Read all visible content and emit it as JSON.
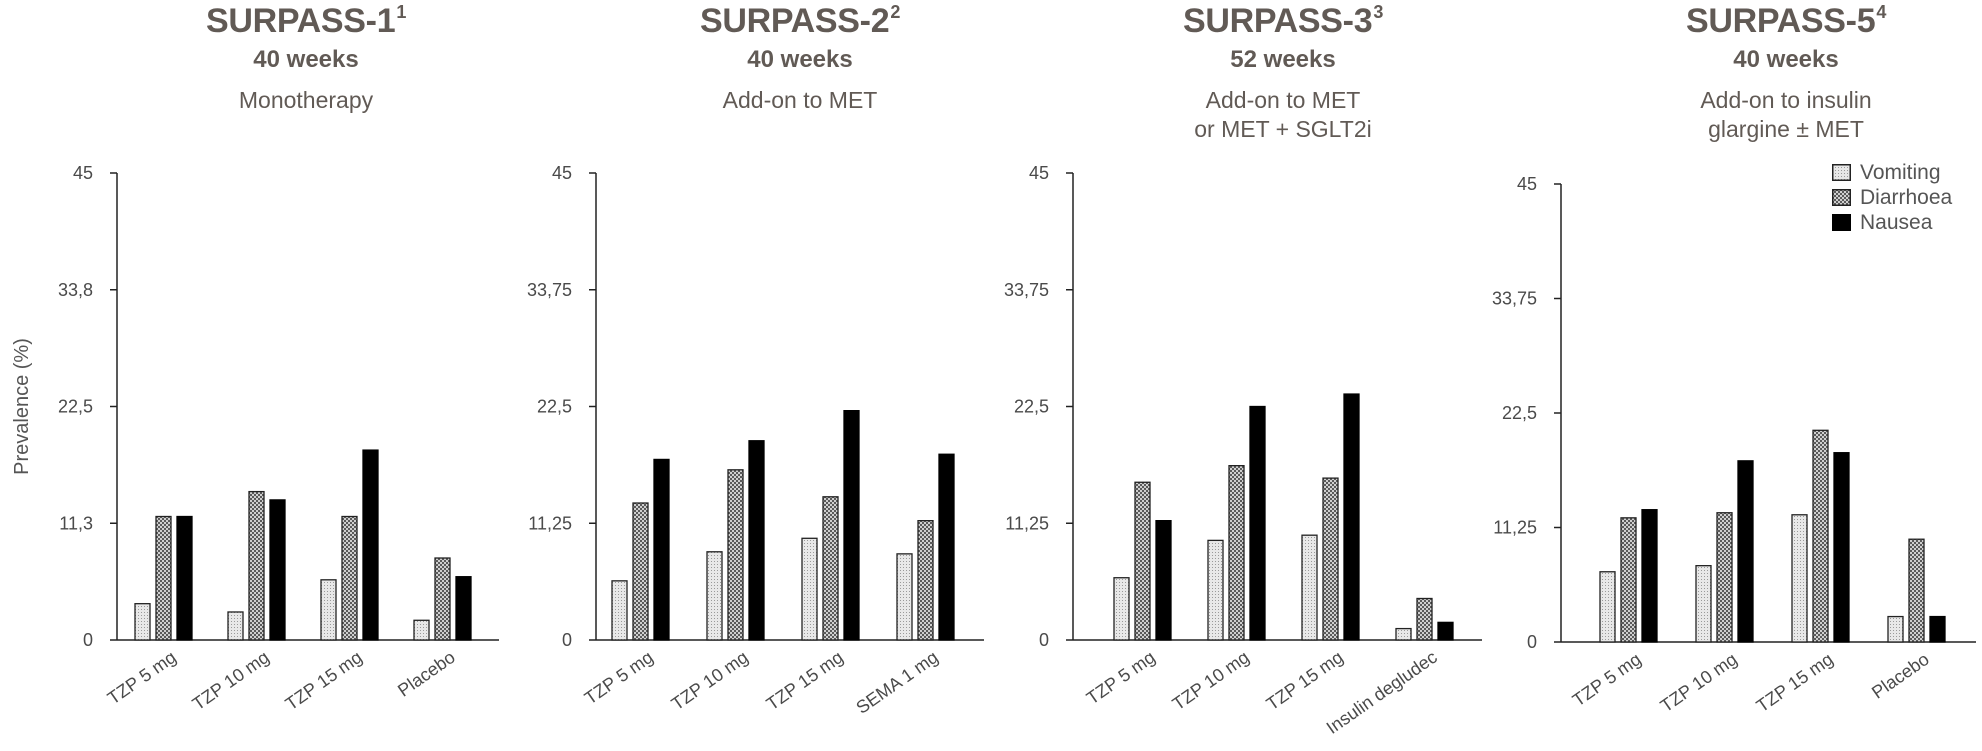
{
  "legend": {
    "items": [
      {
        "name": "Vomiting",
        "pattern": "dots-light"
      },
      {
        "name": "Diarrhoea",
        "pattern": "checker-dark"
      },
      {
        "name": "Nausea",
        "pattern": "solid-black"
      }
    ]
  },
  "chart_data": [
    {
      "type": "bar",
      "title": "SURPASS-1",
      "title_sup": "1",
      "subtitle": "40 weeks",
      "description": [
        "Monotherapy"
      ],
      "ylabel": "Prevalence (%)",
      "ylim": [
        0,
        45
      ],
      "yticks": [
        "0",
        "11,3",
        "22,5",
        "33,8",
        "45"
      ],
      "categories": [
        "TZP 5 mg",
        "TZP 10 mg",
        "TZP 15 mg",
        "Placebo"
      ],
      "series": [
        {
          "name": "Vomiting",
          "values": [
            3.5,
            2.7,
            5.8,
            1.9
          ]
        },
        {
          "name": "Diarrhoea",
          "values": [
            11.9,
            14.3,
            11.9,
            7.9
          ]
        },
        {
          "name": "Nausea",
          "values": [
            11.9,
            13.5,
            18.3,
            6.1
          ]
        }
      ]
    },
    {
      "type": "bar",
      "title": "SURPASS-2",
      "title_sup": "2",
      "subtitle": "40 weeks",
      "description": [
        "Add-on to MET"
      ],
      "ylim": [
        0,
        45
      ],
      "yticks": [
        "0",
        "11,25",
        "22,5",
        "33,75",
        "45"
      ],
      "categories": [
        "TZP 5 mg",
        "TZP 10 mg",
        "TZP 15 mg",
        "SEMA 1 mg"
      ],
      "series": [
        {
          "name": "Vomiting",
          "values": [
            5.7,
            8.5,
            9.8,
            8.3
          ]
        },
        {
          "name": "Diarrhoea",
          "values": [
            13.2,
            16.4,
            13.8,
            11.5
          ]
        },
        {
          "name": "Nausea",
          "values": [
            17.4,
            19.2,
            22.1,
            17.9
          ]
        }
      ]
    },
    {
      "type": "bar",
      "title": "SURPASS-3",
      "title_sup": "3",
      "subtitle": "52 weeks",
      "description": [
        "Add-on to MET",
        "or MET + SGLT2i"
      ],
      "ylim": [
        0,
        45
      ],
      "yticks": [
        "0",
        "11,25",
        "22,5",
        "33,75",
        "45"
      ],
      "categories": [
        "TZP 5 mg",
        "TZP 10 mg",
        "TZP 15 mg",
        "Insulin degludec"
      ],
      "series": [
        {
          "name": "Vomiting",
          "values": [
            6.0,
            9.6,
            10.1,
            1.1
          ]
        },
        {
          "name": "Diarrhoea",
          "values": [
            15.2,
            16.8,
            15.6,
            4.0
          ]
        },
        {
          "name": "Nausea",
          "values": [
            11.5,
            22.5,
            23.7,
            1.7
          ]
        }
      ]
    },
    {
      "type": "bar",
      "title": "SURPASS-5",
      "title_sup": "4",
      "subtitle": "40 weeks",
      "description": [
        "Add-on to insulin",
        "glargine ± MET"
      ],
      "ylim": [
        0,
        45
      ],
      "yticks": [
        "0",
        "11,25",
        "22,5",
        "33,75",
        "45"
      ],
      "categories": [
        "TZP 5 mg",
        "TZP 10 mg",
        "TZP 15 mg",
        "Placebo"
      ],
      "series": [
        {
          "name": "Vomiting",
          "values": [
            6.9,
            7.5,
            12.5,
            2.5
          ]
        },
        {
          "name": "Diarrhoea",
          "values": [
            12.2,
            12.7,
            20.8,
            10.1
          ]
        },
        {
          "name": "Nausea",
          "values": [
            13.0,
            17.8,
            18.6,
            2.5
          ]
        }
      ]
    }
  ]
}
